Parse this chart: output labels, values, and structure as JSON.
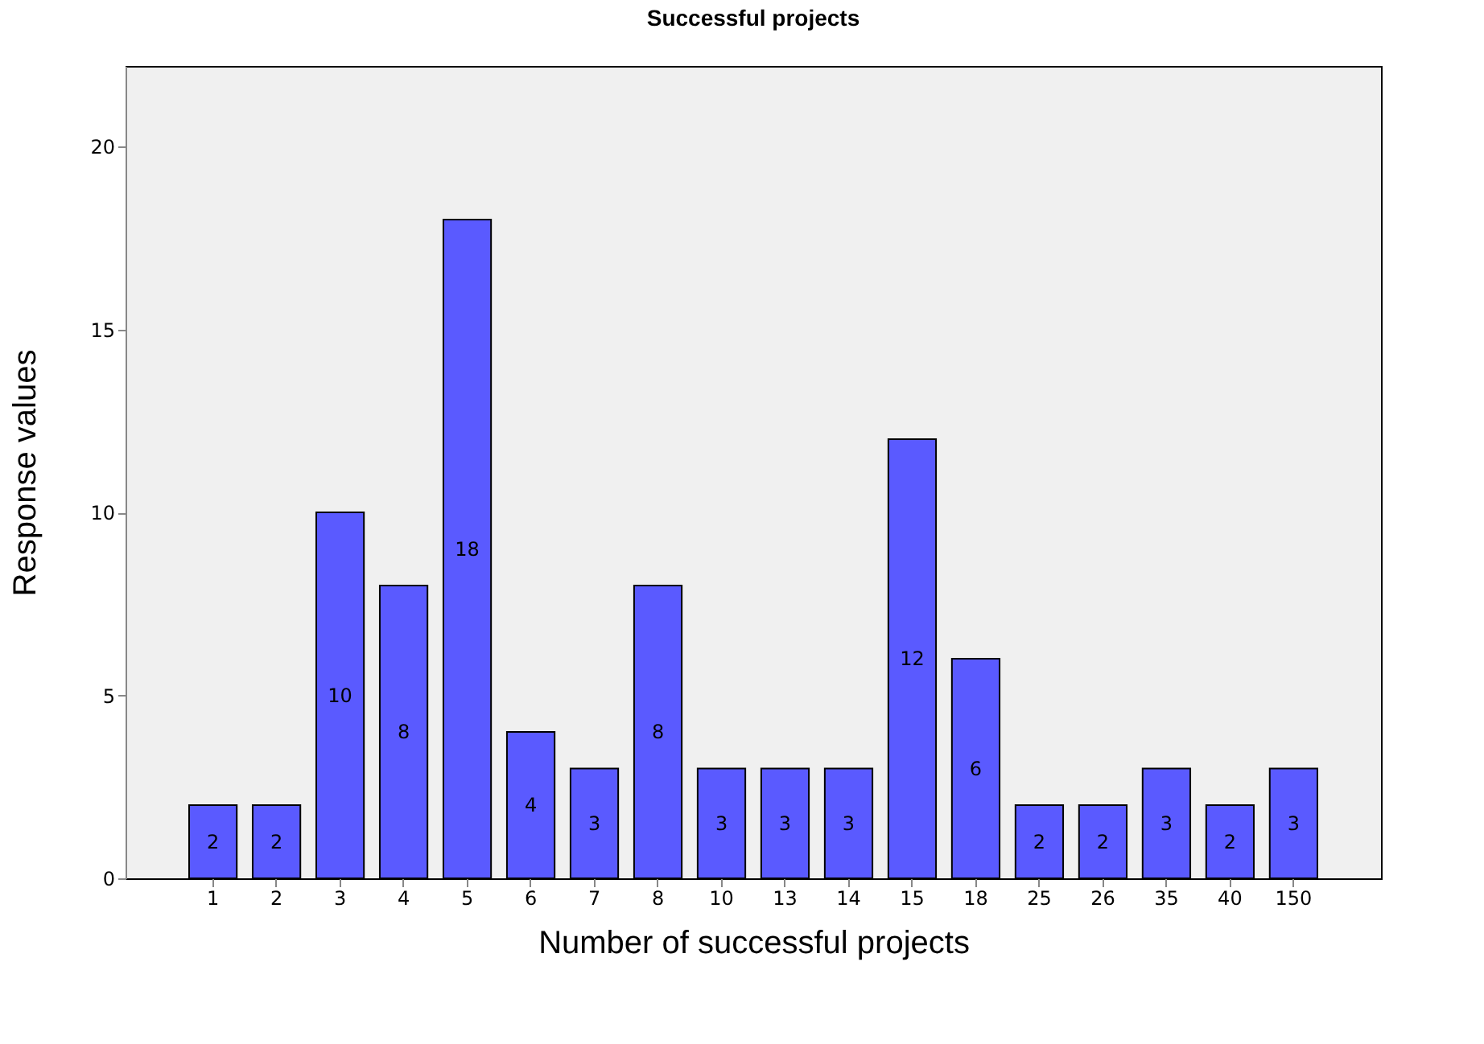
{
  "chart_data": {
    "type": "bar",
    "title": "Successful projects",
    "xlabel": "Number of successful projects",
    "ylabel": "Response values",
    "categories": [
      "1",
      "2",
      "3",
      "4",
      "5",
      "6",
      "7",
      "8",
      "10",
      "13",
      "14",
      "15",
      "18",
      "25",
      "26",
      "35",
      "40",
      "150"
    ],
    "values": [
      2,
      2,
      10,
      8,
      18,
      4,
      3,
      8,
      3,
      3,
      3,
      12,
      6,
      2,
      2,
      3,
      2,
      3
    ],
    "color": "#5a5aff",
    "ylim": [
      0,
      22.2
    ],
    "yticks": [
      0,
      5,
      10,
      15,
      20
    ],
    "grid": false,
    "data_labels": true
  }
}
